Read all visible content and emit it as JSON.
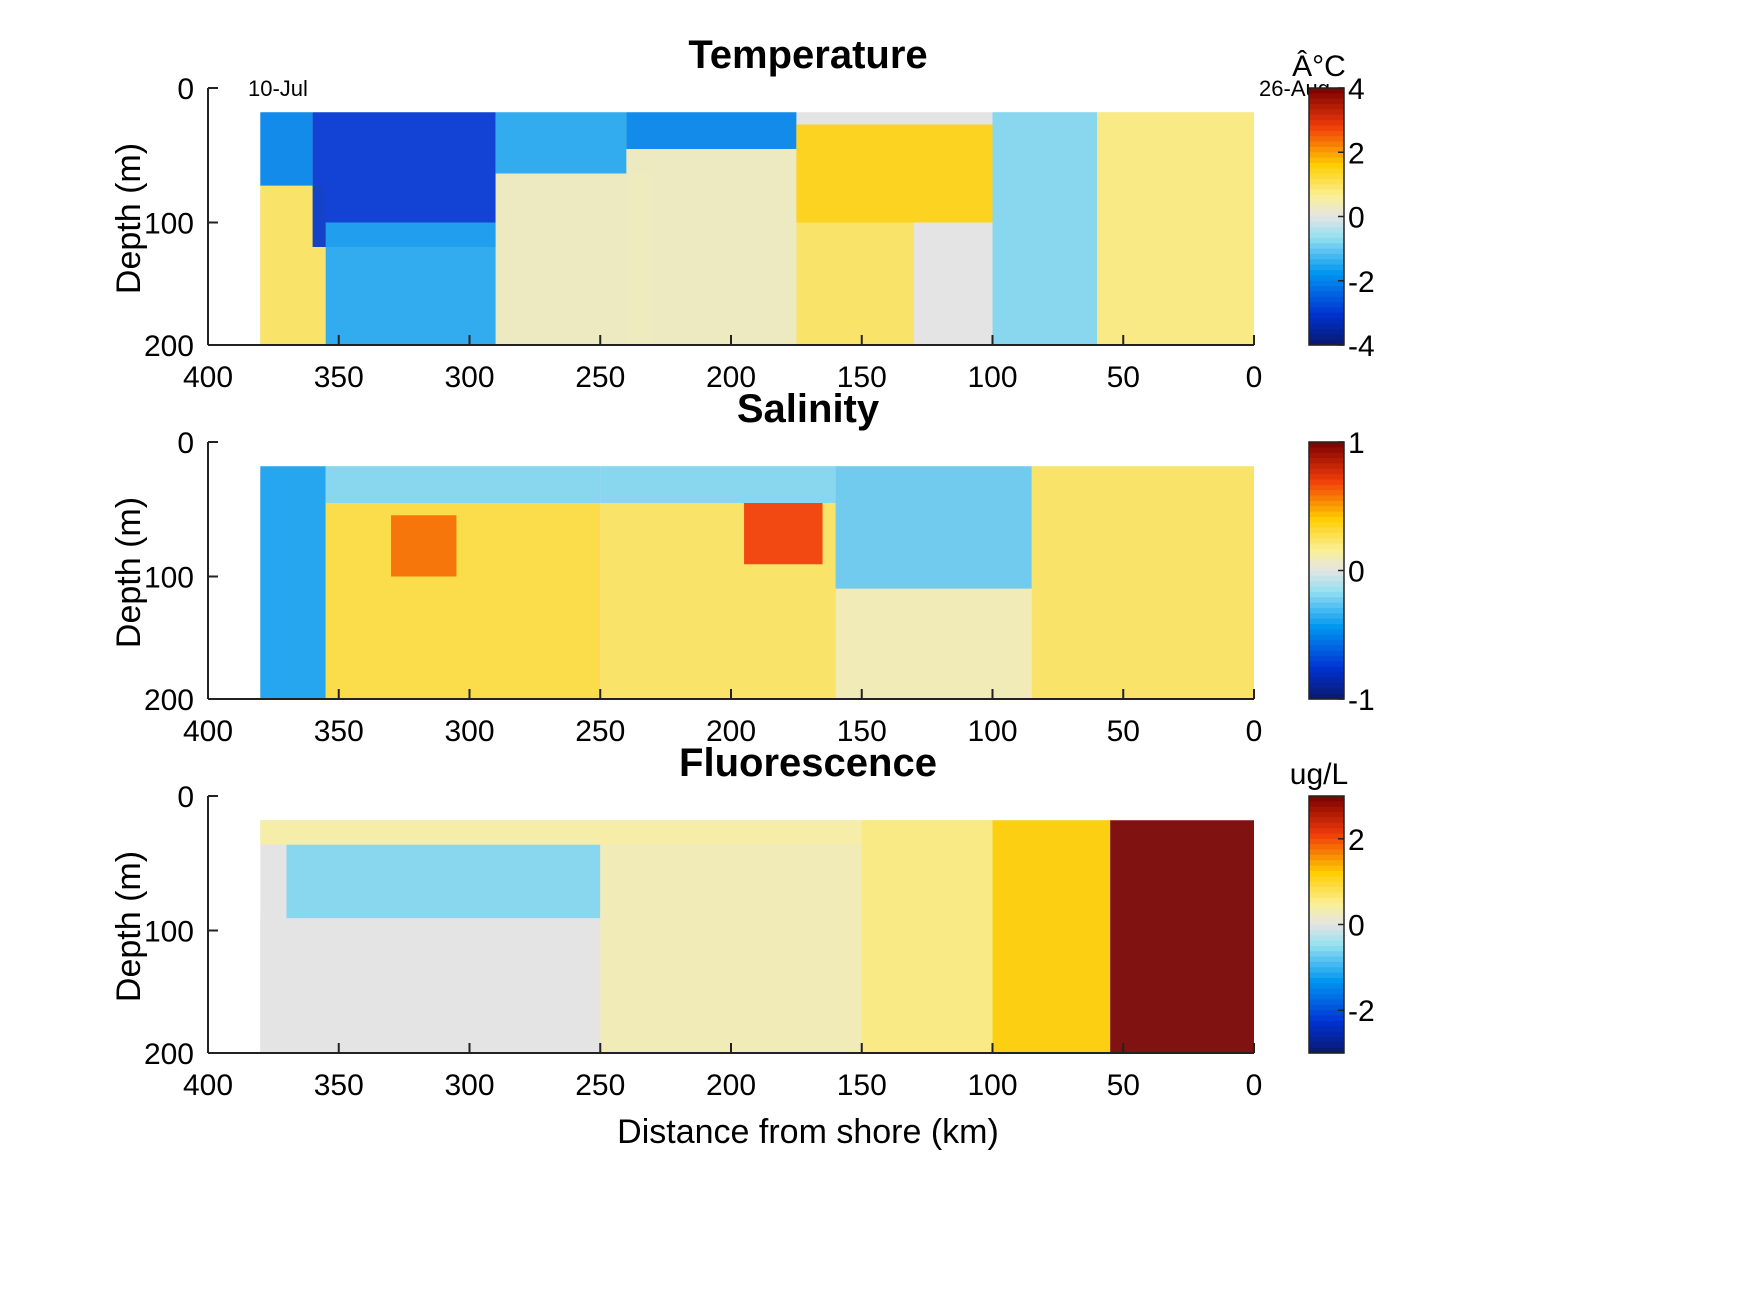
{
  "chart_data": [
    {
      "type": "heatmap",
      "title": "Temperature",
      "xlabel": "",
      "ylabel": "Depth (m)",
      "xlim": [
        400,
        0
      ],
      "ylim": [
        200,
        0
      ],
      "xticks": [
        "400",
        "350",
        "300",
        "250",
        "200",
        "150",
        "100",
        "50",
        "0"
      ],
      "yticks": [
        "0",
        "100",
        "200"
      ],
      "colorbar": {
        "label": "Â°C",
        "ticks": [
          "4",
          "2",
          "0",
          "-2",
          "-4"
        ],
        "range": [
          -4,
          4
        ]
      },
      "annotations": {
        "start": "10-Jul",
        "end": "26-Aug"
      },
      "data_x_range": [
        380,
        0
      ],
      "data_depth_range": [
        10,
        200
      ],
      "features": [
        {
          "x": [
            380,
            360
          ],
          "depth": [
            10,
            70
          ],
          "value": -2.0
        },
        {
          "x": [
            380,
            355
          ],
          "depth": [
            70,
            200
          ],
          "value": 1.0
        },
        {
          "x": [
            360,
            290
          ],
          "depth": [
            10,
            120
          ],
          "value": -3.0
        },
        {
          "x": [
            355,
            290
          ],
          "depth": [
            100,
            200
          ],
          "value": -1.5
        },
        {
          "x": [
            290,
            240
          ],
          "depth": [
            10,
            60
          ],
          "value": -1.5
        },
        {
          "x": [
            290,
            230
          ],
          "depth": [
            60,
            200
          ],
          "value": 0.3
        },
        {
          "x": [
            240,
            175
          ],
          "depth": [
            10,
            40
          ],
          "value": -2.0
        },
        {
          "x": [
            240,
            175
          ],
          "depth": [
            40,
            200
          ],
          "value": 0.3
        },
        {
          "x": [
            175,
            100
          ],
          "depth": [
            20,
            100
          ],
          "value": 1.5
        },
        {
          "x": [
            175,
            130
          ],
          "depth": [
            100,
            200
          ],
          "value": 1.0
        },
        {
          "x": [
            130,
            95
          ],
          "depth": [
            100,
            200
          ],
          "value": 0.0
        },
        {
          "x": [
            100,
            60
          ],
          "depth": [
            10,
            200
          ],
          "value": -0.8
        },
        {
          "x": [
            60,
            0
          ],
          "depth": [
            10,
            200
          ],
          "value": 0.8
        }
      ]
    },
    {
      "type": "heatmap",
      "title": "Salinity",
      "xlabel": "",
      "ylabel": "Depth (m)",
      "xlim": [
        400,
        0
      ],
      "ylim": [
        200,
        0
      ],
      "xticks": [
        "400",
        "350",
        "300",
        "250",
        "200",
        "150",
        "100",
        "50",
        "0"
      ],
      "yticks": [
        "0",
        "100",
        "200"
      ],
      "colorbar": {
        "label": "",
        "ticks": [
          "1",
          "0",
          "-1"
        ],
        "range": [
          -1,
          1
        ]
      },
      "data_x_range": [
        380,
        0
      ],
      "data_depth_range": [
        10,
        200
      ],
      "features": [
        {
          "x": [
            380,
            355
          ],
          "depth": [
            10,
            200
          ],
          "value": -0.4
        },
        {
          "x": [
            355,
            250
          ],
          "depth": [
            10,
            40
          ],
          "value": -0.2
        },
        {
          "x": [
            355,
            250
          ],
          "depth": [
            40,
            200
          ],
          "value": 0.3
        },
        {
          "x": [
            330,
            305
          ],
          "depth": [
            50,
            100
          ],
          "value": 0.6
        },
        {
          "x": [
            250,
            160
          ],
          "depth": [
            10,
            40
          ],
          "value": -0.2
        },
        {
          "x": [
            250,
            160
          ],
          "depth": [
            40,
            200
          ],
          "value": 0.25
        },
        {
          "x": [
            195,
            165
          ],
          "depth": [
            40,
            90
          ],
          "value": 0.7
        },
        {
          "x": [
            160,
            85
          ],
          "depth": [
            10,
            110
          ],
          "value": -0.25
        },
        {
          "x": [
            160,
            85
          ],
          "depth": [
            110,
            200
          ],
          "value": 0.1
        },
        {
          "x": [
            85,
            0
          ],
          "depth": [
            10,
            200
          ],
          "value": 0.25
        }
      ]
    },
    {
      "type": "heatmap",
      "title": "Fluorescence",
      "xlabel": "Distance from shore (km)",
      "ylabel": "Depth (m)",
      "xlim": [
        400,
        0
      ],
      "ylim": [
        200,
        0
      ],
      "xticks": [
        "400",
        "350",
        "300",
        "250",
        "200",
        "150",
        "100",
        "50",
        "0"
      ],
      "yticks": [
        "0",
        "100",
        "200"
      ],
      "colorbar": {
        "label": "ug/L",
        "ticks": [
          "2",
          "0",
          "-2"
        ],
        "range": [
          -3,
          3
        ]
      },
      "data_x_range": [
        380,
        0
      ],
      "data_depth_range": [
        10,
        200
      ],
      "features": [
        {
          "x": [
            380,
            150
          ],
          "depth": [
            10,
            30
          ],
          "value": 0.4
        },
        {
          "x": [
            370,
            250
          ],
          "depth": [
            30,
            90
          ],
          "value": -0.6
        },
        {
          "x": [
            380,
            250
          ],
          "depth": [
            90,
            200
          ],
          "value": 0.0
        },
        {
          "x": [
            250,
            150
          ],
          "depth": [
            30,
            200
          ],
          "value": 0.3
        },
        {
          "x": [
            150,
            100
          ],
          "depth": [
            10,
            200
          ],
          "value": 0.6
        },
        {
          "x": [
            100,
            55
          ],
          "depth": [
            10,
            200
          ],
          "value": 1.2
        },
        {
          "x": [
            55,
            0
          ],
          "depth": [
            10,
            200
          ],
          "value": 3.0
        }
      ]
    }
  ]
}
